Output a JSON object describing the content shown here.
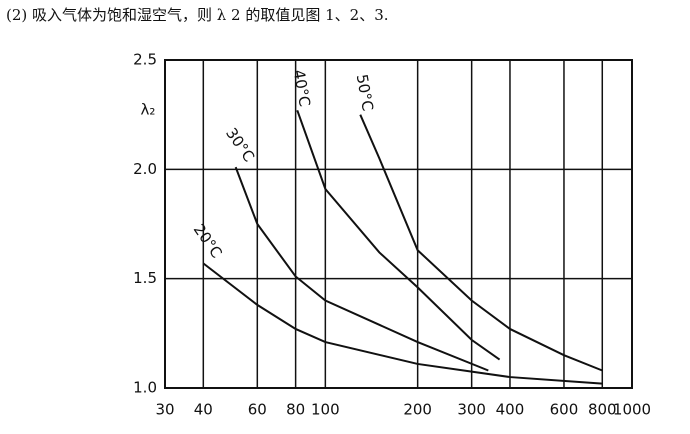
{
  "heading": "(2) 吸入气体为饱和湿空气，则 λ 2 的取值见图 1、2、3.",
  "chart_data": {
    "type": "line",
    "y_label": "λ₂",
    "x_scale": "log",
    "grid": true,
    "xlim": [
      30,
      1000
    ],
    "xticks": [
      30,
      40,
      60,
      80,
      100,
      200,
      300,
      400,
      600,
      800,
      1000
    ],
    "ylim": [
      1.0,
      2.5
    ],
    "yticks": [
      {
        "value": 1.0,
        "label": "1.0"
      },
      1.5,
      {
        "value": 2.0,
        "label": "2.0"
      },
      2.5
    ],
    "series": [
      {
        "name": "20°C",
        "color": "#111111",
        "x": [
          40,
          60,
          80,
          100,
          200,
          400,
          800
        ],
        "values": [
          1.57,
          1.38,
          1.27,
          1.21,
          1.11,
          1.05,
          1.02
        ]
      },
      {
        "name": "30°C",
        "color": "#111111",
        "x": [
          51,
          60,
          80,
          100,
          200,
          340
        ],
        "values": [
          2.01,
          1.75,
          1.51,
          1.4,
          1.21,
          1.08
        ]
      },
      {
        "name": "40°C",
        "color": "#111111",
        "x": [
          81,
          100,
          150,
          200,
          300,
          370
        ],
        "values": [
          2.27,
          1.91,
          1.62,
          1.46,
          1.22,
          1.13
        ]
      },
      {
        "name": "50°C",
        "color": "#111111",
        "x": [
          130,
          150,
          200,
          300,
          400,
          600,
          800
        ],
        "values": [
          2.25,
          2.05,
          1.63,
          1.4,
          1.27,
          1.15,
          1.08
        ]
      }
    ]
  }
}
